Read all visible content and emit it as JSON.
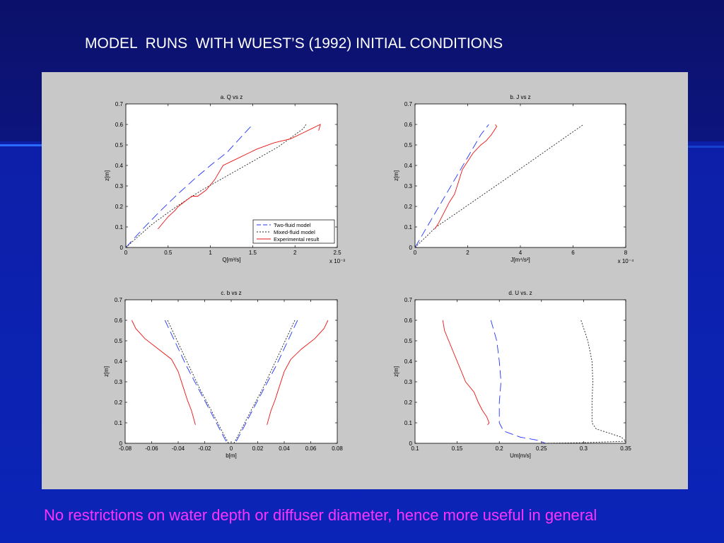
{
  "slide": {
    "title": "MODEL  RUNS  WITH WUEST’S (1992) INITIAL CONDITIONS",
    "footer": "No restrictions on water depth or diffuser diameter, hence more useful in general",
    "colors": {
      "title": "#ffffff",
      "footer": "#ff33ff",
      "panel": "#c8c8c8"
    }
  },
  "series_styles": {
    "Two-fluid model": {
      "color": "#2233ff",
      "dash": "12,6"
    },
    "Mixed-fluid model": {
      "color": "#222222",
      "dash": "2,2"
    },
    "Experimental result": {
      "color": "#ee1111",
      "dash": ""
    }
  },
  "chart_data": [
    {
      "id": "a",
      "type": "line",
      "title": "a. Q vs z",
      "xlabel": "Q[m³/s]",
      "ylabel": "z[m]",
      "xlim": [
        0,
        2.5
      ],
      "ylim": [
        0,
        0.7
      ],
      "xticks": [
        "0",
        "0.5",
        "1",
        "1.5",
        "2",
        "2.5"
      ],
      "yticks": [
        "0",
        "0.1",
        "0.2",
        "0.3",
        "0.4",
        "0.5",
        "0.6",
        "0.7"
      ],
      "xmultiplier": "x 10⁻³",
      "legend": {
        "position": "bottom-right",
        "entries": [
          "Two-fluid model",
          "Mixed-fluid model",
          "Experimental result"
        ]
      },
      "series": [
        {
          "name": "Two-fluid model",
          "x": [
            0,
            0.2,
            0.4,
            0.6,
            0.8,
            1.0,
            1.2,
            1.5
          ],
          "y": [
            0,
            0.09,
            0.175,
            0.255,
            0.33,
            0.4,
            0.465,
            0.6
          ]
        },
        {
          "name": "Mixed-fluid model",
          "x": [
            0,
            0.3,
            0.6,
            0.9,
            1.2,
            1.5,
            1.8,
            2.1,
            2.13
          ],
          "y": [
            0,
            0.11,
            0.2,
            0.28,
            0.35,
            0.42,
            0.49,
            0.58,
            0.6
          ]
        },
        {
          "name": "Experimental result",
          "x": [
            0.38,
            0.5,
            0.58,
            0.62,
            0.78,
            0.85,
            0.95,
            1.05,
            1.15,
            1.3,
            1.45,
            1.55,
            1.75,
            1.95,
            2.1,
            2.2,
            2.25,
            2.3,
            2.28
          ],
          "y": [
            0.09,
            0.15,
            0.18,
            0.2,
            0.25,
            0.25,
            0.28,
            0.33,
            0.4,
            0.43,
            0.46,
            0.48,
            0.51,
            0.53,
            0.56,
            0.58,
            0.59,
            0.6,
            0.57
          ]
        }
      ]
    },
    {
      "id": "b",
      "type": "line",
      "title": "b. J vs z",
      "xlabel": "J[m⁴/s²]",
      "ylabel": "z[m]",
      "xlim": [
        0,
        8
      ],
      "ylim": [
        0,
        0.7
      ],
      "xticks": [
        "0",
        "2",
        "4",
        "6",
        "8"
      ],
      "yticks": [
        "0",
        "0.1",
        "0.2",
        "0.3",
        "0.4",
        "0.5",
        "0.6",
        "0.7"
      ],
      "xmultiplier": "x 10⁻⁴",
      "series": [
        {
          "name": "Two-fluid model",
          "x": [
            0,
            0.5,
            1.0,
            1.5,
            2.0,
            2.5,
            2.8
          ],
          "y": [
            0,
            0.11,
            0.22,
            0.33,
            0.44,
            0.55,
            0.6
          ]
        },
        {
          "name": "Mixed-fluid model",
          "x": [
            0,
            0.8,
            1.6,
            2.5,
            3.4,
            4.4,
            5.4,
            6.4
          ],
          "y": [
            0,
            0.1,
            0.17,
            0.25,
            0.33,
            0.42,
            0.51,
            0.6
          ]
        },
        {
          "name": "Experimental result",
          "x": [
            0.75,
            0.9,
            1.1,
            1.3,
            1.45,
            1.5,
            1.65,
            1.8,
            2.0,
            2.2,
            2.5,
            2.7,
            2.9,
            3.0,
            3.1,
            3.05
          ],
          "y": [
            0.09,
            0.12,
            0.17,
            0.22,
            0.25,
            0.26,
            0.32,
            0.38,
            0.42,
            0.46,
            0.5,
            0.52,
            0.55,
            0.57,
            0.59,
            0.6
          ]
        }
      ]
    },
    {
      "id": "c",
      "type": "line",
      "title": "c. b vs z",
      "xlabel": "b[m]",
      "ylabel": "z[m]",
      "xlim": [
        -0.08,
        0.08
      ],
      "ylim": [
        0,
        0.7
      ],
      "xticks": [
        "-0.08",
        "-0.06",
        "-0.04",
        "-0.02",
        "0",
        "0.02",
        "0.04",
        "0.06",
        "0.08"
      ],
      "yticks": [
        "0",
        "0.1",
        "0.2",
        "0.3",
        "0.4",
        "0.5",
        "0.6",
        "0.7"
      ],
      "series": [
        {
          "name": "Two-fluid model",
          "x": [
            -0.05,
            -0.042,
            -0.034,
            -0.025,
            -0.016,
            -0.008,
            -0.003
          ],
          "y": [
            0.6,
            0.49,
            0.38,
            0.27,
            0.16,
            0.06,
            0
          ],
          "x2": [
            0.05,
            0.042,
            0.034,
            0.025,
            0.016,
            0.008,
            0.003
          ]
        },
        {
          "name": "Mixed-fluid model",
          "x": [
            -0.048,
            -0.04,
            -0.032,
            -0.024,
            -0.015,
            -0.007,
            -0.002
          ],
          "y": [
            0.6,
            0.49,
            0.38,
            0.27,
            0.16,
            0.06,
            0
          ],
          "x2": [
            0.048,
            0.04,
            0.032,
            0.024,
            0.015,
            0.007,
            0.002
          ]
        },
        {
          "name": "Experimental result",
          "x": [
            -0.075,
            -0.072,
            -0.065,
            -0.055,
            -0.045,
            -0.04,
            -0.036,
            -0.033,
            -0.03,
            -0.027
          ],
          "y": [
            0.6,
            0.56,
            0.51,
            0.46,
            0.41,
            0.35,
            0.27,
            0.21,
            0.16,
            0.09
          ],
          "x2": [
            0.073,
            0.07,
            0.063,
            0.053,
            0.045,
            0.04,
            0.036,
            0.033,
            0.03,
            0.027
          ]
        }
      ]
    },
    {
      "id": "d",
      "type": "line",
      "title": "d. U vs. z",
      "xlabel": "Um[m/s]",
      "ylabel": "z[m]",
      "xlim": [
        0.1,
        0.35
      ],
      "ylim": [
        0,
        0.7
      ],
      "xticks": [
        "0.1",
        "0.15",
        "0.2",
        "0.25",
        "0.3",
        "0.35"
      ],
      "yticks": [
        "0",
        "0.1",
        "0.2",
        "0.3",
        "0.4",
        "0.5",
        "0.6",
        "0.7"
      ],
      "series": [
        {
          "name": "Two-fluid model",
          "x": [
            0.19,
            0.197,
            0.2,
            0.202,
            0.2,
            0.2,
            0.205,
            0.225,
            0.245,
            0.255
          ],
          "y": [
            0.6,
            0.5,
            0.4,
            0.3,
            0.2,
            0.1,
            0.06,
            0.03,
            0.015,
            0
          ]
        },
        {
          "name": "Mixed-fluid model",
          "x": [
            0.297,
            0.305,
            0.31,
            0.311,
            0.31,
            0.31,
            0.315,
            0.33,
            0.345,
            0.35,
            0.3,
            0.25
          ],
          "y": [
            0.6,
            0.5,
            0.4,
            0.3,
            0.2,
            0.1,
            0.07,
            0.05,
            0.03,
            0.01,
            0.003,
            0
          ]
        },
        {
          "name": "Experimental result",
          "x": [
            0.133,
            0.135,
            0.14,
            0.145,
            0.15,
            0.155,
            0.16,
            0.17,
            0.175,
            0.18,
            0.185,
            0.188,
            0.186
          ],
          "y": [
            0.6,
            0.55,
            0.5,
            0.45,
            0.4,
            0.35,
            0.3,
            0.25,
            0.2,
            0.16,
            0.13,
            0.1,
            0.09
          ]
        }
      ]
    }
  ]
}
